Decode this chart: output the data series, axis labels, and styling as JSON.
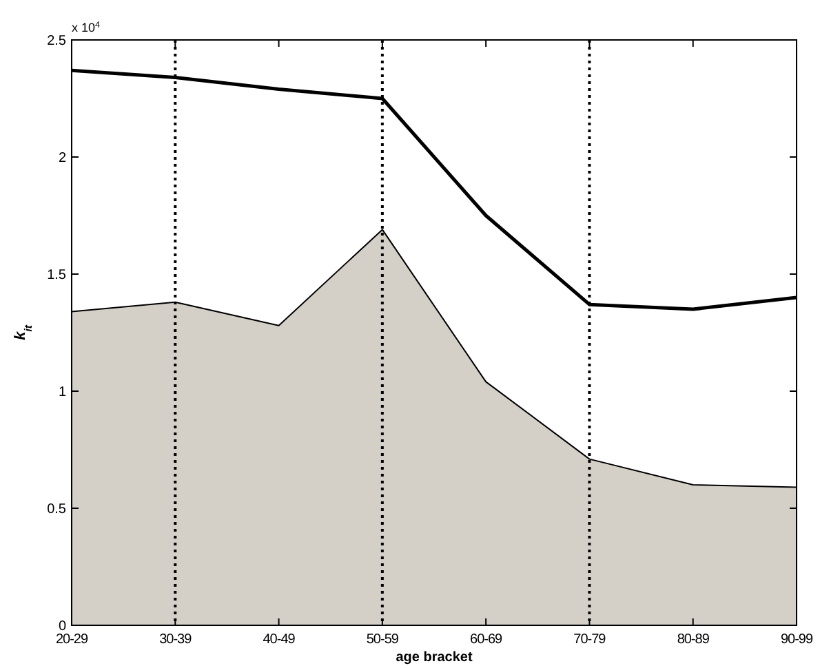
{
  "chart_data": {
    "type": "line",
    "xlabel": "age bracket",
    "ylabel": "k$_{it}$",
    "annotations": [
      "x 10$^{4}$"
    ],
    "categories": [
      "20-29",
      "30-39",
      "40-49",
      "50-59",
      "60-69",
      "70-79",
      "80-89",
      "90-99"
    ],
    "series": [
      {
        "type": "area",
        "color": "#d4d0c8",
        "values": [
          1.34,
          1.38,
          1.28,
          1.69,
          1.04,
          0.71,
          0.6,
          0.59
        ]
      },
      {
        "color": "#000000",
        "values": [
          2.37,
          2.34,
          2.29,
          2.25,
          1.75,
          1.37,
          1.35,
          1.4
        ]
      }
    ],
    "ylim": [
      0,
      2.5
    ],
    "yticks": [
      0,
      0.5,
      1,
      1.5,
      2,
      2.5
    ],
    "grid": false,
    "ref_lines": [
      {
        "axis": "x",
        "value": "30-39",
        "line_style": "dotted",
        "color": "#000000"
      },
      {
        "axis": "x",
        "value": "50-59",
        "line_style": "dotted",
        "color": "#000000"
      },
      {
        "axis": "x",
        "value": "70-79",
        "line_style": "dotted",
        "color": "#000000"
      }
    ]
  }
}
